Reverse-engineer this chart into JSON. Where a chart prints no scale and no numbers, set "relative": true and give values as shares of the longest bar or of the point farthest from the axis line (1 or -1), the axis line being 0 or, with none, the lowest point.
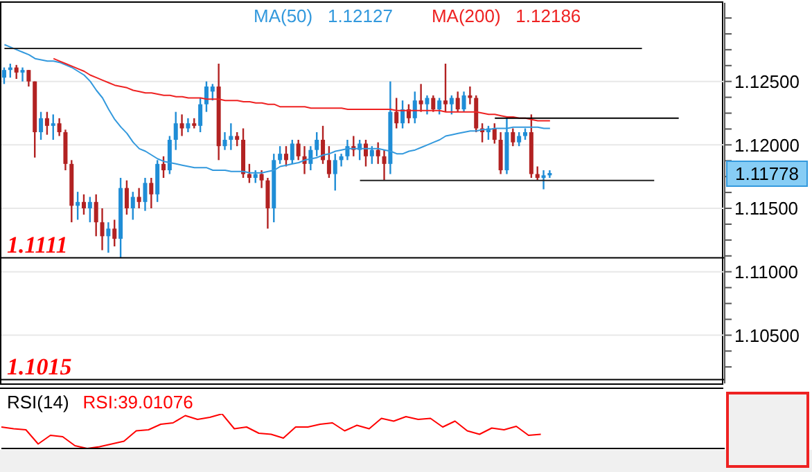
{
  "chart_data": [
    {
      "type": "candlestick",
      "legend": "top",
      "grid": "y",
      "tick_labels": "y",
      "categories": [
        null,
        null,
        null,
        null,
        null,
        null,
        null,
        null,
        null,
        null,
        null,
        null,
        null,
        null,
        null,
        null,
        null,
        null,
        null,
        null,
        null,
        null,
        null,
        null,
        null,
        null,
        null,
        null,
        null,
        null,
        null,
        null,
        null,
        null,
        null,
        null,
        null,
        null,
        null,
        null,
        null,
        null,
        null,
        null,
        null,
        null,
        null,
        null,
        null,
        null,
        null,
        null,
        null,
        null,
        null,
        null,
        null,
        null,
        null,
        null,
        null,
        null,
        null,
        null,
        null,
        null,
        null,
        null,
        null,
        null,
        null,
        null,
        null,
        null,
        null,
        null,
        null,
        null,
        null,
        null,
        null,
        null,
        null,
        null,
        null,
        null,
        null,
        null,
        null,
        null,
        null,
        null,
        null,
        null,
        null,
        null,
        null,
        null,
        null,
        null,
        null,
        null,
        null,
        null,
        null,
        null,
        null,
        null,
        null,
        null,
        null,
        null,
        null,
        null,
        null,
        null,
        null,
        null
      ],
      "ohlc": [
        [
          1.1253,
          1.1261,
          1.1248,
          1.1259
        ],
        [
          1.1259,
          1.1264,
          1.1253,
          1.1261
        ],
        [
          1.1261,
          1.1263,
          1.1252,
          1.1257
        ],
        [
          1.1257,
          1.1261,
          1.125,
          1.1259
        ],
        [
          1.1259,
          1.1259,
          1.1246,
          1.125
        ],
        [
          1.125,
          1.125,
          1.119,
          1.121
        ],
        [
          1.121,
          1.1226,
          1.1204,
          1.1221
        ],
        [
          1.1221,
          1.1226,
          1.1208,
          1.1215
        ],
        [
          1.1215,
          1.1224,
          1.1204,
          1.1217
        ],
        [
          1.1217,
          1.1221,
          1.1207,
          1.121
        ],
        [
          1.121,
          1.1212,
          1.118,
          1.1185
        ],
        [
          1.1185,
          1.1188,
          1.1139,
          1.1152
        ],
        [
          1.1152,
          1.1163,
          1.1141,
          1.1155
        ],
        [
          1.1155,
          1.1161,
          1.1145,
          1.115
        ],
        [
          1.115,
          1.1159,
          1.1139,
          1.1155
        ],
        [
          1.1155,
          1.1161,
          1.1128,
          1.1139
        ],
        [
          1.1139,
          1.115,
          1.1117,
          1.1128
        ],
        [
          1.1128,
          1.1139,
          1.1115,
          1.1134
        ],
        [
          1.1134,
          1.1141,
          1.112,
          1.1126
        ],
        [
          1.1126,
          1.1174,
          1.1111,
          1.1166
        ],
        [
          1.1166,
          1.1172,
          1.1145,
          1.115
        ],
        [
          1.115,
          1.1163,
          1.1141,
          1.1159
        ],
        [
          1.1159,
          1.1166,
          1.115,
          1.1155
        ],
        [
          1.1155,
          1.1174,
          1.1148,
          1.117
        ],
        [
          1.117,
          1.1174,
          1.115,
          1.1161
        ],
        [
          1.1161,
          1.1188,
          1.1155,
          1.1185
        ],
        [
          1.1185,
          1.1191,
          1.1174,
          1.118
        ],
        [
          1.118,
          1.1207,
          1.1177,
          1.1204
        ],
        [
          1.1204,
          1.1226,
          1.1196,
          1.1217
        ],
        [
          1.1217,
          1.1224,
          1.1207,
          1.1213
        ],
        [
          1.1213,
          1.1221,
          1.121,
          1.1217
        ],
        [
          1.1217,
          1.1221,
          1.1213,
          1.1215
        ],
        [
          1.1215,
          1.1237,
          1.121,
          1.1232
        ],
        [
          1.1232,
          1.125,
          1.1226,
          1.1246
        ],
        [
          1.1242,
          1.1248,
          1.1235,
          1.1246
        ],
        [
          1.1246,
          1.1264,
          1.1188,
          1.1199
        ],
        [
          1.1199,
          1.121,
          1.1196,
          1.1204
        ],
        [
          1.1204,
          1.1217,
          1.1196,
          1.1207
        ],
        [
          1.1207,
          1.121,
          1.1199,
          1.1204
        ],
        [
          1.1204,
          1.1213,
          1.1174,
          1.1177
        ],
        [
          1.1177,
          1.1185,
          1.117,
          1.1174
        ],
        [
          1.1174,
          1.118,
          1.117,
          1.1177
        ],
        [
          1.1177,
          1.118,
          1.1166,
          1.1172
        ],
        [
          1.1172,
          1.1174,
          1.1134,
          1.115
        ],
        [
          1.115,
          1.1193,
          1.1139,
          1.1188
        ],
        [
          1.1188,
          1.1199,
          1.1185,
          1.1193
        ],
        [
          1.1193,
          1.1199,
          1.1183,
          1.1188
        ],
        [
          1.1188,
          1.1204,
          1.1185,
          1.1201
        ],
        [
          1.1201,
          1.1204,
          1.1188,
          1.1191
        ],
        [
          1.1191,
          1.1199,
          1.1177,
          1.1185
        ],
        [
          1.1185,
          1.1199,
          1.118,
          1.1196
        ],
        [
          1.1196,
          1.121,
          1.1191,
          1.1204
        ],
        [
          1.1204,
          1.1215,
          1.1185,
          1.1188
        ],
        [
          1.1188,
          1.1199,
          1.1174,
          1.1177
        ],
        [
          1.1177,
          1.1193,
          1.1164,
          1.1188
        ],
        [
          1.1188,
          1.1193,
          1.1183,
          1.1191
        ],
        [
          1.1191,
          1.1204,
          1.1188,
          1.1199
        ],
        [
          1.1199,
          1.1207,
          1.1191,
          1.1196
        ],
        [
          1.1196,
          1.1204,
          1.1188,
          1.1201
        ],
        [
          1.1201,
          1.1204,
          1.1183,
          1.1191
        ],
        [
          1.1191,
          1.1199,
          1.1185,
          1.1196
        ],
        [
          1.1196,
          1.1202,
          1.1185,
          1.1191
        ],
        [
          1.1191,
          1.1196,
          1.1172,
          1.1185
        ],
        [
          1.1185,
          1.125,
          1.1177,
          1.1226
        ],
        [
          1.1226,
          1.1237,
          1.1213,
          1.1217
        ],
        [
          1.1217,
          1.1235,
          1.1213,
          1.1228
        ],
        [
          1.1228,
          1.1232,
          1.1217,
          1.1221
        ],
        [
          1.1221,
          1.1242,
          1.1217,
          1.1235
        ],
        [
          1.1235,
          1.1248,
          1.1226,
          1.1232
        ],
        [
          1.1232,
          1.1239,
          1.1224,
          1.1237
        ],
        [
          1.1237,
          1.1239,
          1.1226,
          1.1228
        ],
        [
          1.1228,
          1.1237,
          1.1224,
          1.1235
        ],
        [
          1.1235,
          1.1264,
          1.1226,
          1.1232
        ],
        [
          1.1232,
          1.1239,
          1.1224,
          1.1237
        ],
        [
          1.1237,
          1.1242,
          1.1226,
          1.1228
        ],
        [
          1.1228,
          1.1242,
          1.1226,
          1.1239
        ],
        [
          1.1239,
          1.1246,
          1.1232,
          1.1237
        ],
        [
          1.1237,
          1.1239,
          1.121,
          1.1213
        ],
        [
          1.1213,
          1.1217,
          1.1202,
          1.121
        ],
        [
          1.121,
          1.1215,
          1.1204,
          1.1213
        ],
        [
          1.1213,
          1.1217,
          1.1201,
          1.1204
        ],
        [
          1.1204,
          1.121,
          1.1177,
          1.118
        ],
        [
          1.118,
          1.1221,
          1.1177,
          1.121
        ],
        [
          1.121,
          1.1213,
          1.1199,
          1.1202
        ],
        [
          1.1202,
          1.121,
          1.1199,
          1.1207
        ],
        [
          1.1207,
          1.1213,
          1.1204,
          1.121
        ],
        [
          1.121,
          1.1224,
          1.1174,
          1.1177
        ],
        [
          1.1177,
          1.1183,
          1.1172,
          1.1174
        ],
        [
          1.1174,
          1.118,
          1.1165,
          1.1176
        ],
        [
          1.1176,
          1.118,
          1.1174,
          1.11778
        ],
        null,
        null,
        null,
        null,
        null,
        null,
        null,
        null,
        null,
        null,
        null,
        null,
        null,
        null,
        null,
        null,
        null,
        null,
        null,
        null,
        null,
        null,
        null,
        null,
        null,
        null,
        null,
        null
      ],
      "series": [
        {
          "type": "line",
          "name": "MA(50)",
          "color": "#3399dd",
          "values": [
            1.1279,
            1.1277,
            1.1275,
            1.1273,
            1.1271,
            1.1268,
            1.1267,
            1.1266,
            1.1266,
            1.1265,
            1.1263,
            1.1261,
            1.1258,
            1.1255,
            1.125,
            1.1243,
            1.1237,
            1.1228,
            1.122,
            1.1214,
            1.1209,
            1.1202,
            1.1197,
            1.1195,
            1.1192,
            1.1189,
            1.1187,
            1.1186,
            1.1185,
            1.1184,
            1.1183,
            1.1182,
            1.1182,
            1.1182,
            1.118,
            1.118,
            1.118,
            1.1179,
            1.1179,
            1.1179,
            1.1178,
            1.1178,
            1.1178,
            1.1179,
            1.118,
            1.1183,
            1.1184,
            1.1185,
            1.1186,
            1.1188,
            1.1189,
            1.119,
            1.1192,
            1.1193,
            1.1195,
            1.1196,
            1.1197,
            1.1197,
            1.1197,
            1.1197,
            1.1197,
            1.1197,
            1.1196,
            1.1195,
            1.1193,
            1.1193,
            1.1195,
            1.1196,
            1.1198,
            1.12,
            1.1202,
            1.1204,
            1.1207,
            1.1208,
            1.1209,
            1.121,
            1.1211,
            1.1211,
            1.1212,
            1.1212,
            1.1213,
            1.1213,
            1.1213,
            1.1214,
            1.1214,
            1.1214,
            1.1214,
            1.1214,
            1.1213,
            1.1213,
            null,
            null,
            null,
            null,
            null,
            null,
            null,
            null,
            null,
            null,
            null,
            null,
            null,
            null,
            null,
            null,
            null,
            null,
            null,
            null,
            null,
            null,
            null,
            null,
            null,
            null,
            null,
            null
          ]
        },
        {
          "type": "line",
          "name": "MA(200)",
          "color": "#ee2222",
          "values": [
            null,
            null,
            null,
            null,
            null,
            null,
            null,
            null,
            1.1268,
            1.1266,
            1.1264,
            1.1262,
            1.126,
            1.1258,
            1.1255,
            1.1253,
            1.1251,
            1.1249,
            1.1247,
            1.1246,
            1.1245,
            1.1243,
            1.1242,
            1.1241,
            1.1241,
            1.124,
            1.1239,
            1.1239,
            1.1238,
            1.1238,
            1.1237,
            1.1237,
            1.1237,
            1.1236,
            1.1236,
            1.1236,
            1.1235,
            1.1235,
            1.1235,
            1.1234,
            1.1234,
            1.1233,
            1.1233,
            1.1232,
            1.1232,
            1.123,
            1.123,
            1.123,
            1.123,
            1.123,
            1.1229,
            1.1229,
            1.1229,
            1.1229,
            1.1229,
            1.1229,
            1.1228,
            1.1228,
            1.1228,
            1.1228,
            1.1228,
            1.1228,
            1.1228,
            1.1228,
            1.1227,
            1.1227,
            1.1227,
            1.1227,
            1.1227,
            1.1227,
            1.1227,
            1.1227,
            1.1226,
            1.1226,
            1.1226,
            1.1226,
            1.1226,
            1.1226,
            1.1225,
            1.1224,
            1.1224,
            1.1223,
            1.1222,
            1.1222,
            1.1221,
            1.1221,
            1.122,
            1.1219,
            1.1219,
            1.1219,
            null,
            null,
            null,
            null,
            null,
            null,
            null,
            null,
            null,
            null,
            null,
            null,
            null,
            null,
            null,
            null,
            null,
            null,
            null,
            null,
            null,
            null,
            null,
            null,
            null,
            null,
            null,
            null
          ]
        },
        {
          "type": "line",
          "color": "#222222",
          "values": [
            1.1276,
            1.1276,
            1.1276,
            1.1276,
            1.1276,
            1.1276,
            1.1276,
            1.1276,
            1.1276,
            1.1276,
            1.1276,
            1.1276,
            1.1276,
            1.1276,
            1.1276,
            1.1276,
            1.1276,
            1.1276,
            1.1276,
            1.1276,
            1.1276,
            1.1276,
            1.1276,
            1.1276,
            1.1276,
            1.1276,
            1.1276,
            1.1276,
            1.1276,
            1.1276,
            1.1276,
            1.1276,
            1.1276,
            1.1276,
            1.1276,
            1.1276,
            1.1276,
            1.1276,
            1.1276,
            1.1276,
            1.1276,
            1.1276,
            1.1276,
            1.1276,
            1.1276,
            1.1276,
            1.1276,
            1.1276,
            1.1276,
            1.1276,
            1.1276,
            1.1276,
            1.1276,
            1.1276,
            1.1276,
            1.1276,
            1.1276,
            1.1276,
            1.1276,
            1.1276,
            1.1276,
            1.1276,
            1.1276,
            1.1276,
            1.1276,
            1.1276,
            1.1276,
            1.1276,
            1.1276,
            1.1276,
            1.1276,
            1.1276,
            1.1276,
            1.1276,
            1.1276,
            1.1276,
            1.1276,
            1.1276,
            1.1276,
            1.1276,
            1.1276,
            1.1276,
            1.1276,
            1.1276,
            1.1276,
            1.1276,
            1.1276,
            1.1276,
            1.1276,
            1.1276,
            1.1276,
            1.1276,
            1.1276,
            1.1276,
            1.1276,
            1.1276,
            1.1276,
            1.1276,
            1.1276,
            1.1276,
            1.1276,
            1.1276,
            1.1276,
            1.1276,
            1.1276,
            null,
            null,
            null,
            null,
            null,
            null,
            null,
            null,
            null,
            null,
            null,
            null,
            null
          ]
        },
        {
          "type": "line",
          "color": "#000000",
          "values": [
            null,
            null,
            null,
            null,
            null,
            null,
            null,
            null,
            null,
            null,
            null,
            null,
            null,
            null,
            null,
            null,
            null,
            null,
            null,
            null,
            null,
            null,
            null,
            null,
            null,
            null,
            null,
            null,
            null,
            null,
            null,
            null,
            null,
            null,
            null,
            null,
            null,
            null,
            null,
            null,
            null,
            null,
            null,
            null,
            null,
            null,
            null,
            null,
            null,
            null,
            null,
            null,
            null,
            null,
            null,
            null,
            null,
            null,
            null,
            null,
            null,
            null,
            null,
            null,
            null,
            null,
            null,
            null,
            null,
            null,
            null,
            null,
            null,
            null,
            null,
            null,
            null,
            null,
            null,
            null,
            1.1221,
            1.1221,
            1.1221,
            1.1221,
            1.1221,
            1.1221,
            1.1221,
            1.1221,
            1.1221,
            1.1221,
            1.1221,
            1.1221,
            1.1221,
            1.1221,
            1.1221,
            1.1221,
            1.1221,
            1.1221,
            1.1221,
            1.1221,
            1.1221,
            1.1221,
            1.1221,
            1.1221,
            1.1221,
            1.1221,
            1.1221,
            1.1221,
            1.1221,
            1.1221,
            1.1221,
            null,
            null,
            null,
            null,
            null,
            null,
            null
          ]
        },
        {
          "type": "line",
          "color": "#222222",
          "values": [
            null,
            null,
            null,
            null,
            null,
            null,
            null,
            null,
            null,
            null,
            null,
            null,
            null,
            null,
            null,
            null,
            null,
            null,
            null,
            null,
            null,
            null,
            null,
            null,
            null,
            null,
            null,
            null,
            null,
            null,
            null,
            null,
            null,
            null,
            null,
            null,
            null,
            null,
            null,
            null,
            null,
            null,
            null,
            null,
            null,
            null,
            null,
            null,
            null,
            null,
            null,
            null,
            null,
            null,
            null,
            null,
            null,
            null,
            1.1172,
            1.1172,
            1.1172,
            1.1172,
            1.1172,
            1.1172,
            1.1172,
            1.1172,
            1.1172,
            1.1172,
            1.1172,
            1.1172,
            1.1172,
            1.1172,
            1.1172,
            1.1172,
            1.1172,
            1.1172,
            1.1172,
            1.1172,
            1.1172,
            1.1172,
            1.1172,
            1.1172,
            1.1172,
            1.1172,
            1.1172,
            1.1172,
            1.1172,
            1.1172,
            1.1172,
            1.1172,
            1.1172,
            1.1172,
            1.1172,
            1.1172,
            1.1172,
            1.1172,
            1.1172,
            1.1172,
            1.1172,
            1.1172,
            1.1172,
            1.1172,
            1.1172,
            1.1172,
            1.1172,
            1.1172,
            1.1172,
            null,
            null,
            null,
            null,
            null,
            null,
            null,
            null,
            null,
            null,
            null
          ]
        }
      ],
      "ylim": [
        1.1012,
        1.1312
      ],
      "yticks": [
        {
          "value": 1.1025,
          "label": null
        },
        {
          "value": 1.10375,
          "label": null
        },
        {
          "value": 1.105,
          "label": "1.10500"
        },
        {
          "value": 1.10625,
          "label": null
        },
        {
          "value": 1.1075,
          "label": null
        },
        {
          "value": 1.10875,
          "label": null
        },
        {
          "value": 1.11,
          "label": "1.11000"
        },
        {
          "value": 1.11125,
          "label": null
        },
        {
          "value": 1.1125,
          "label": null
        },
        {
          "value": 1.11375,
          "label": null
        },
        {
          "value": 1.115,
          "label": "1.11500"
        },
        {
          "value": 1.11625,
          "label": null
        },
        {
          "value": 1.1175,
          "label": null
        },
        {
          "value": 1.11875,
          "label": null
        },
        {
          "value": 1.12,
          "label": "1.12000"
        },
        {
          "value": 1.12125,
          "label": null
        },
        {
          "value": 1.1225,
          "label": null
        },
        {
          "value": 1.12375,
          "label": null
        },
        {
          "value": 1.125,
          "label": "1.12500"
        },
        {
          "value": 1.12625,
          "label": null
        },
        {
          "value": 1.1275,
          "label": null
        },
        {
          "value": 1.12875,
          "label": null
        },
        {
          "value": 1.13,
          "label": null
        }
      ],
      "ref_lines": [
        {
          "axis": "y",
          "value": 1.1111,
          "label": "1.1111",
          "color": "#000000"
        },
        {
          "axis": "y",
          "value": 1.1015,
          "label": "1.1015",
          "color": "#000000"
        }
      ],
      "annotations": [
        "1.12127",
        "1.12186",
        "1.11778"
      ]
    },
    {
      "type": "line",
      "relative": true,
      "tick_labels": false,
      "title": "RSI(14)",
      "annotations": [
        "RSI:39.01076"
      ],
      "categories": [
        null,
        null,
        null,
        null,
        null,
        null,
        null,
        null,
        null,
        null,
        null,
        null,
        null,
        null,
        null,
        null,
        null,
        null,
        null,
        null,
        null,
        null,
        null,
        null,
        null,
        null,
        null,
        null,
        null,
        null,
        null,
        null,
        null,
        null,
        null,
        null,
        null,
        null,
        null,
        null,
        null,
        null,
        null,
        null,
        null,
        null,
        null,
        null,
        null,
        null,
        null,
        null,
        null,
        null,
        null,
        null,
        null,
        null,
        null,
        null
      ],
      "series": [
        {
          "color": "#ff0000",
          "values": [
            0.62,
            0.57,
            0.54,
            0.13,
            0.38,
            0.34,
            0.08,
            0,
            0.05,
            0.13,
            0.21,
            0.51,
            0.54,
            0.7,
            0.74,
            0.95,
            0.84,
            0.9,
            1,
            0.57,
            0.62,
            0.44,
            0.41,
            0.3,
            0.62,
            0.62,
            0.7,
            0.74,
            0.51,
            0.67,
            0.57,
            0.87,
            0.79,
            0.92,
            0.84,
            0.87,
            0.62,
            0.79,
            0.51,
            0.41,
            0.59,
            0.54,
            0.64,
            0.38,
            0.41,
            null,
            null,
            null,
            null,
            null,
            null,
            null,
            null,
            null,
            null,
            null,
            null,
            null,
            null,
            null
          ]
        }
      ]
    }
  ]
}
